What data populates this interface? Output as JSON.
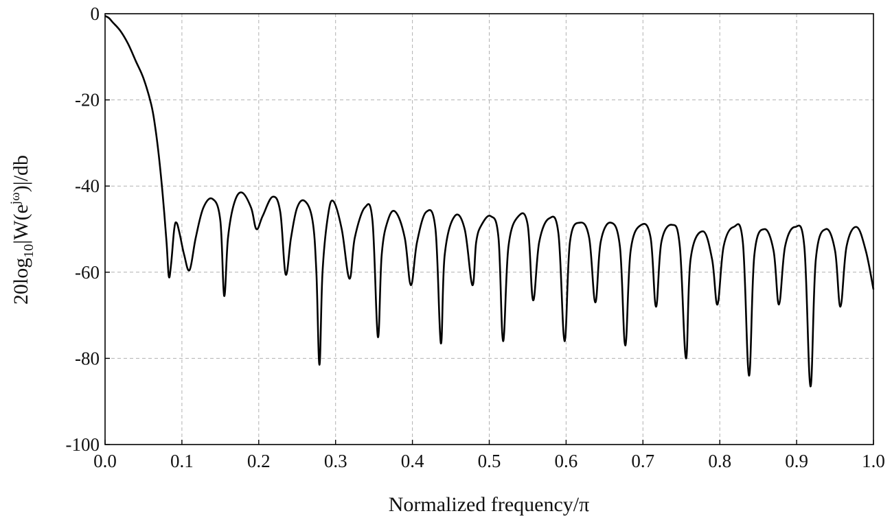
{
  "chart_data": {
    "type": "line",
    "title": "",
    "xlabel": "Normalized frequency/π",
    "ylabel": {
      "prefix": "20log",
      "sub": "10",
      "mid": "|W(e",
      "sup": "jω",
      "suffix": ")|/db"
    },
    "xlim": [
      0.0,
      1.0
    ],
    "ylim": [
      -100,
      0
    ],
    "xticks": [
      "0.0",
      "0.1",
      "0.2",
      "0.3",
      "0.4",
      "0.5",
      "0.6",
      "0.7",
      "0.8",
      "0.9",
      "1.0"
    ],
    "yticks": [
      "0",
      "-20",
      "-40",
      "-60",
      "-80",
      "-100"
    ],
    "grid": true,
    "series": [
      {
        "x": [
          0.0,
          0.005,
          0.01,
          0.02,
          0.03,
          0.04,
          0.05,
          0.06,
          0.065,
          0.07,
          0.075,
          0.08,
          0.083,
          0.086,
          0.09,
          0.093,
          0.097,
          0.103,
          0.11,
          0.118,
          0.128,
          0.14,
          0.15,
          0.155,
          0.16,
          0.168,
          0.178,
          0.19,
          0.197,
          0.205,
          0.218,
          0.228,
          0.235,
          0.242,
          0.25,
          0.26,
          0.27,
          0.275,
          0.279,
          0.283,
          0.29,
          0.297,
          0.308,
          0.318,
          0.325,
          0.338,
          0.348,
          0.355,
          0.36,
          0.368,
          0.378,
          0.39,
          0.398,
          0.406,
          0.418,
          0.43,
          0.437,
          0.442,
          0.455,
          0.468,
          0.478,
          0.483,
          0.49,
          0.502,
          0.512,
          0.518,
          0.525,
          0.538,
          0.55,
          0.557,
          0.565,
          0.578,
          0.59,
          0.598,
          0.605,
          0.618,
          0.63,
          0.638,
          0.645,
          0.658,
          0.67,
          0.677,
          0.684,
          0.698,
          0.71,
          0.717,
          0.724,
          0.738,
          0.748,
          0.756,
          0.762,
          0.778,
          0.79,
          0.797,
          0.805,
          0.818,
          0.83,
          0.838,
          0.845,
          0.858,
          0.87,
          0.877,
          0.885,
          0.898,
          0.91,
          0.918,
          0.925,
          0.938,
          0.95,
          0.957,
          0.965,
          0.978,
          0.99,
          1.0
        ],
        "y": [
          -0.5,
          -1,
          -2,
          -4,
          -7,
          -11,
          -15,
          -21,
          -26,
          -33,
          -42,
          -53,
          -61,
          -58,
          -50,
          -48.5,
          -51,
          -56,
          -59.5,
          -52,
          -45,
          -43,
          -48,
          -65.5,
          -52,
          -44,
          -41.5,
          -45,
          -50,
          -47,
          -42.5,
          -46,
          -60.5,
          -52,
          -45,
          -43.5,
          -48,
          -60,
          -81.5,
          -60,
          -47,
          -43.5,
          -50,
          -61.5,
          -52,
          -45,
          -48,
          -75,
          -56,
          -48,
          -46,
          -52,
          -63,
          -53,
          -46,
          -50,
          -76.5,
          -56,
          -47,
          -50,
          -63,
          -53,
          -49,
          -47,
          -52,
          -76,
          -54,
          -47,
          -49,
          -66.5,
          -53,
          -47.5,
          -51,
          -76,
          -53,
          -48.5,
          -52,
          -67,
          -53,
          -48.5,
          -54,
          -77,
          -55,
          -49,
          -52,
          -68,
          -53,
          -49,
          -54,
          -80,
          -57,
          -50.5,
          -57,
          -67.5,
          -54,
          -49.5,
          -53,
          -84,
          -56,
          -50,
          -55,
          -67.5,
          -54,
          -49.5,
          -54,
          -86.5,
          -57,
          -50,
          -55,
          -68,
          -54,
          -49.5,
          -55,
          -64
        ]
      }
    ]
  }
}
